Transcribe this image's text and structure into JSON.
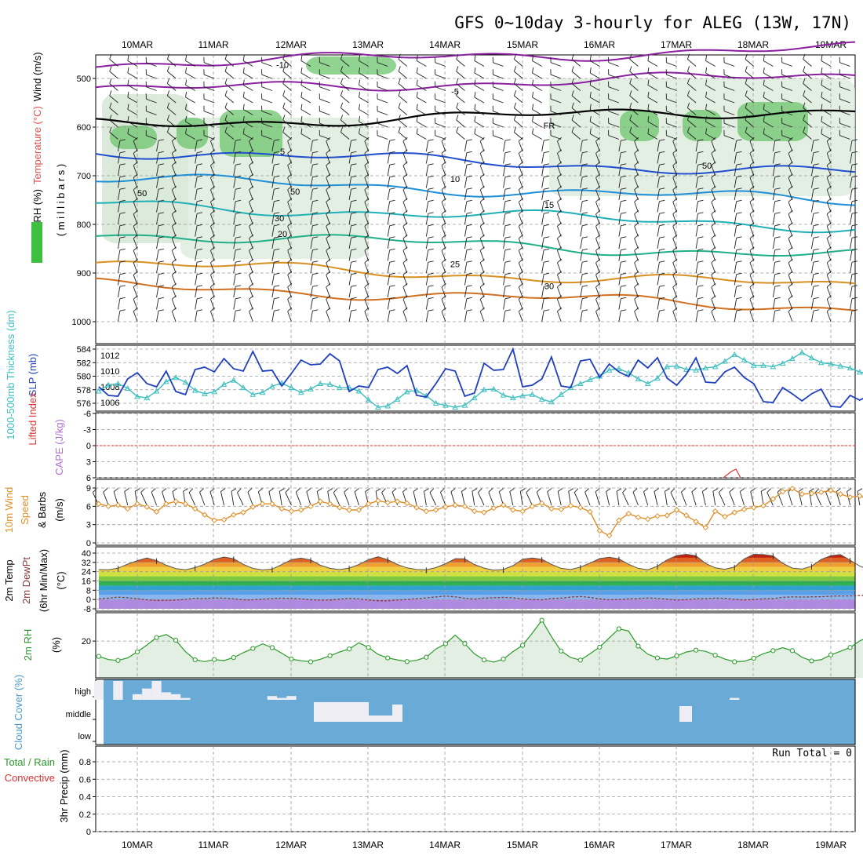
{
  "title": "GFS 0~10day 3-hourly for ALEG (13W, 17N)",
  "dates": [
    "10MAR",
    "11MAR",
    "12MAR",
    "13MAR",
    "14MAR",
    "15MAR",
    "16MAR",
    "17MAR",
    "18MAR",
    "19MAR"
  ],
  "colors": {
    "slp": "#1f3fbf",
    "thickness": "#3fbfbf",
    "wind": "#e0902a",
    "rh": "#2a9a2a",
    "cloud": "#6aaad6",
    "li": "#e03030",
    "cape": "#b070d0"
  },
  "chart_data": [
    {
      "type": "heatmap",
      "panel": "upper-air",
      "ylabel_parts": [
        "RH (%)",
        "Temperature (°C)",
        "Wind (m/s)"
      ],
      "ylabel2": "( m i l l i b a r s )",
      "y_ticks": [
        "500",
        "600",
        "700",
        "800",
        "900",
        "1000"
      ],
      "ylim": [
        450,
        1000
      ],
      "isotherms": [
        {
          "label": "-10",
          "pressure": 470,
          "color": "#8a1fa0"
        },
        {
          "label": "-5",
          "pressure": 525,
          "color": "#8a1fa0"
        },
        {
          "label": "FR",
          "pressure": 595,
          "color": "#000000"
        },
        {
          "label": "5",
          "pressure": 648,
          "color": "#1f4fd0"
        },
        {
          "label": "10",
          "pressure": 705,
          "color": "#1f8fd8"
        },
        {
          "label": "15",
          "pressure": 758,
          "color": "#1fb0b8"
        },
        {
          "label": "20",
          "pressure": 818,
          "color": "#1fb08a"
        },
        {
          "label": "25",
          "pressure": 880,
          "color": "#d89020"
        },
        {
          "label": "30",
          "pressure": 925,
          "color": "#d07020"
        }
      ],
      "rh_contour_labels": [
        "30",
        "50"
      ]
    },
    {
      "type": "line",
      "panel": "slp-thickness",
      "ylabel_left": "1000-500mb Thickness (dm)",
      "ylabel_right": "SLP (mb)",
      "left_ticks": [
        "584",
        "582",
        "580",
        "578",
        "576"
      ],
      "right_ticks": [
        "1012",
        "1010",
        "1008",
        "1006"
      ],
      "series": [
        {
          "name": "SLP (mb)",
          "values": [
            1008.0,
            1006.9,
            1006.8,
            1009.0,
            1009.8,
            1008.4,
            1008.0,
            1010.0,
            1007.4,
            1007.0,
            1010.2,
            1010.5,
            1009.9,
            1011.6,
            1010.3,
            1010.0,
            1012.5,
            1010.0,
            1010.1,
            1008.1,
            1009.7,
            1011.4,
            1010.8,
            1010.9,
            1012.2,
            1011.3,
            1007.4,
            1008.1,
            1007.9,
            1010.2,
            1010.5,
            1009.7,
            1010.7,
            1006.9,
            1006.7,
            1008.4,
            1010.3,
            1010.0,
            1006.8,
            1007.2,
            1011.0,
            1010.1,
            1010.2,
            1012.8,
            1008.0,
            1008.2,
            1009.0,
            1011.8,
            1008.1,
            1007.9,
            1011.3,
            1011.5,
            1009.2,
            1010.9,
            1009.9,
            1009.3,
            1011.4,
            1010.4,
            1011.7,
            1009.1,
            1008.2,
            1009.6,
            1011.7,
            1008.6,
            1008.5,
            1009.9,
            1010.5,
            1009.2,
            1008.4,
            1006.1,
            1006.0,
            1007.9,
            1007.1,
            1006.2,
            1007.1,
            1007.7,
            1005.5,
            1005.4,
            1006.9,
            1006.3,
            1006.9
          ]
        },
        {
          "name": "1000-500mb Thickness (dm)",
          "values": [
            577.8,
            578.7,
            578.9,
            578.2,
            577.0,
            576.8,
            577.8,
            579.2,
            579.8,
            579.1,
            577.9,
            577.4,
            577.7,
            578.8,
            579.4,
            578.3,
            577.3,
            577.6,
            578.5,
            579.0,
            578.3,
            577.6,
            578.1,
            578.9,
            578.8,
            578.3,
            578.3,
            577.8,
            576.5,
            575.4,
            575.6,
            576.6,
            577.7,
            577.9,
            577.1,
            576.0,
            575.7,
            575.4,
            575.7,
            576.8,
            578.0,
            578.1,
            577.2,
            576.8,
            577.1,
            577.3,
            576.6,
            576.2,
            577.3,
            578.3,
            578.9,
            579.5,
            580.0,
            580.9,
            581.1,
            580.5,
            579.6,
            578.9,
            579.7,
            581.4,
            581.5,
            581.0,
            580.9,
            581.2,
            581.4,
            582.2,
            583.2,
            582.4,
            581.6,
            581.6,
            581.4,
            581.9,
            582.6,
            583.5,
            582.7,
            582.0,
            581.8,
            581.5,
            581.2,
            580.6,
            580.4
          ]
        }
      ]
    },
    {
      "type": "line",
      "panel": "lifted-cape",
      "ylabel_left": "Lifted Index",
      "ylabel_right": "CAPE (J/kg)",
      "y_ticks": [
        "-6",
        "-3",
        "0",
        "3",
        "6"
      ]
    },
    {
      "type": "line",
      "panel": "wind10m",
      "ylabel": "10m Wind Speed & Barbs (m/s)",
      "ylabel_parts": [
        "10m Wind",
        "Speed",
        "& Barbs",
        "(m/s)"
      ],
      "y_ticks": [
        "9",
        "6",
        "3",
        "0"
      ],
      "ylim": [
        0,
        9
      ],
      "series": [
        {
          "name": "10m Wind Speed",
          "values": [
            6.4,
            6.0,
            6.2,
            5.6,
            6.4,
            5.9,
            5.1,
            6.4,
            6.8,
            6.4,
            5.6,
            4.6,
            3.7,
            3.8,
            4.6,
            5.0,
            5.9,
            6.4,
            6.4,
            5.6,
            5.2,
            5.4,
            6.0,
            6.8,
            6.4,
            5.8,
            5.4,
            5.4,
            6.4,
            6.9,
            6.6,
            6.8,
            6.5,
            5.8,
            5.2,
            5.4,
            5.9,
            6.2,
            6.0,
            5.2,
            5.0,
            5.7,
            6.2,
            5.4,
            5.2,
            6.0,
            6.5,
            5.6,
            5.5,
            6.1,
            5.8,
            5.1,
            2.0,
            1.2,
            3.7,
            4.8,
            4.2,
            3.9,
            4.4,
            4.5,
            5.4,
            4.5,
            3.5,
            2.5,
            5.2,
            4.3,
            5.0,
            5.5,
            5.8,
            6.1,
            7.2,
            8.4,
            8.9,
            8.0,
            8.1,
            8.3,
            8.6,
            8.0,
            7.5,
            7.7,
            7.1
          ]
        }
      ]
    },
    {
      "type": "area",
      "panel": "temp-dewpoint",
      "ylabel_parts": [
        "2m Temp",
        "2m DewPt",
        "(6hr Min/Max)",
        "(°C)"
      ],
      "y_ticks": [
        "40",
        "32",
        "24",
        "16",
        "8",
        "0",
        "-8"
      ],
      "ylim": [
        -8,
        40
      ],
      "series": [
        {
          "name": "2m Temp",
          "values": [
            25.8,
            25.6,
            27.0,
            30.5,
            33.5,
            35.9,
            33.5,
            29.6,
            26.7,
            25.7,
            27.5,
            30.5,
            34.6,
            36.6,
            35.2,
            30.3,
            26.8,
            25.5,
            26.2,
            30.1,
            34.4,
            35.7,
            34.1,
            29.5,
            26.9,
            25.8,
            27.1,
            30.1,
            34.3,
            36.8,
            34.4,
            30.2,
            27.3,
            25.9,
            25.6,
            27.5,
            30.9,
            35.2,
            35.1,
            30.2,
            27.1,
            25.3,
            25.9,
            29.2,
            34.8,
            35.8,
            34.7,
            30.3,
            26.9,
            25.9,
            27.9,
            31.5,
            35.3,
            36.5,
            35.0,
            30.4,
            26.9,
            25.7,
            28.7,
            34.2,
            37.9,
            39.0,
            37.7,
            31.1,
            27.3,
            26.1,
            28.0,
            35.0,
            39.0,
            38.7,
            37.6,
            31.3,
            27.1,
            26.2,
            28.7,
            34.5,
            37.8,
            38.7,
            33.9,
            28.9,
            25.3
          ]
        },
        {
          "name": "2m DewPt",
          "values": [
            0.5,
            1.2,
            2.0,
            1.5,
            0.6,
            -0.3,
            -0.8,
            -0.6,
            -0.5,
            0.1,
            1.1,
            0.8,
            1.3,
            1.2,
            0.6,
            -0.3,
            -0.3,
            0.3,
            0.8,
            1.2,
            0.9,
            0.6,
            -0.2,
            -0.5,
            -0.4,
            0.4,
            1.0,
            0.5,
            -0.4,
            -1.1,
            -1.1,
            -0.4,
            0.0,
            0.7,
            1.3,
            2.2,
            3.0,
            2.3,
            1.1,
            0.3,
            1.2,
            1.5,
            1.8,
            1.4,
            0.6,
            -0.1,
            -0.2,
            0.9,
            1.2,
            2.1,
            2.6,
            1.8,
            0.6,
            -0.2,
            0.0,
            0.5,
            0.8,
            1.4,
            1.0,
            0.3,
            -0.5,
            -0.1,
            0.6,
            0.8,
            1.2,
            1.0,
            0.2,
            -0.4,
            0.0,
            0.6,
            0.8,
            1.8,
            2.3,
            2.1,
            2.3,
            2.4,
            2.9,
            3.1,
            3.1,
            3.5,
            3.4
          ]
        }
      ]
    },
    {
      "type": "area",
      "panel": "rh2m",
      "ylabel": "2m RH",
      "yunit": "(%)",
      "y_ticks": [
        "20"
      ],
      "ylim": [
        0,
        35
      ],
      "series": [
        {
          "name": "2m RH",
          "values": [
            10.9,
            9.0,
            8.5,
            10.0,
            13.6,
            17.7,
            22.1,
            23.9,
            20.5,
            13.7,
            8.9,
            7.8,
            9.0,
            8.4,
            10.2,
            13.1,
            15.6,
            18.4,
            16.1,
            12.8,
            9.3,
            8.3,
            7.7,
            9.2,
            11.3,
            13.5,
            15.3,
            19.0,
            16.2,
            12.1,
            10.0,
            8.8,
            7.8,
            8.6,
            10.4,
            15.3,
            18.4,
            23.5,
            18.5,
            12.4,
            8.8,
            7.5,
            9.3,
            13.7,
            17.5,
            24.7,
            32.4,
            22.7,
            14.1,
            10.2,
            8.7,
            12.5,
            16.4,
            21.9,
            27.3,
            26.0,
            17.0,
            12.2,
            10.0,
            9.3,
            11.2,
            13.5,
            14.6,
            13.9,
            11.6,
            9.3,
            7.7,
            8.0,
            9.8,
            12.5,
            14.3,
            16.1,
            14.3,
            10.4,
            8.2,
            8.9,
            11.8,
            13.9,
            16.2,
            20.1,
            22.6
          ]
        }
      ]
    },
    {
      "type": "bar",
      "panel": "cloud-cover",
      "ylabel": "Cloud Cover (%)",
      "levels": [
        "high",
        "middle",
        "low"
      ],
      "series": [
        {
          "name": "high",
          "values": [
            100,
            0,
            100,
            0,
            30,
            60,
            100,
            40,
            30,
            10,
            0,
            0,
            0,
            0,
            0,
            0,
            0,
            0,
            20,
            10,
            20,
            0,
            0,
            0,
            0,
            0,
            0,
            0,
            0,
            0,
            0,
            0,
            0,
            0,
            0,
            0,
            0,
            0,
            0,
            0,
            0,
            0,
            0,
            0,
            0,
            0,
            0,
            0,
            0,
            0,
            0,
            0,
            0,
            0,
            0,
            0,
            0,
            0,
            0,
            0,
            0,
            0,
            0,
            0,
            0,
            0,
            10,
            0,
            0,
            0,
            0,
            0,
            0,
            0,
            0,
            0,
            0,
            0,
            0,
            0,
            0
          ]
        },
        {
          "name": "middle",
          "values": [
            0,
            0,
            0,
            0,
            0,
            0,
            0,
            0,
            0,
            0,
            0,
            0,
            0,
            0,
            0,
            0,
            0,
            0,
            0,
            0,
            0,
            0,
            0,
            0,
            0,
            0,
            0,
            0,
            0,
            0,
            0,
            0,
            0,
            0,
            0,
            0,
            0,
            0,
            0,
            0,
            0,
            0,
            0,
            0,
            0,
            0,
            0,
            0,
            0,
            0,
            0,
            0,
            0,
            0,
            0,
            0,
            0,
            0,
            0,
            0,
            0,
            0,
            0,
            0,
            0,
            0,
            0,
            0,
            0,
            0,
            0,
            0,
            0,
            0,
            0,
            0,
            0,
            0,
            0,
            0,
            0
          ]
        },
        {
          "name": "low",
          "values": [
            0,
            0,
            0,
            0,
            0,
            0,
            0,
            0,
            0,
            0,
            0,
            0,
            0,
            0,
            0,
            0,
            0,
            0,
            0,
            0,
            0,
            0,
            0,
            0,
            0,
            0,
            0,
            0,
            0,
            0,
            0,
            0,
            0,
            0,
            0,
            0,
            0,
            0,
            0,
            0,
            0,
            0,
            0,
            0,
            0,
            0,
            0,
            0,
            0,
            0,
            0,
            0,
            0,
            0,
            0,
            0,
            0,
            0,
            0,
            0,
            0,
            0,
            0,
            0,
            0,
            0,
            0,
            0,
            0,
            0,
            0,
            0,
            0,
            0,
            0,
            0,
            0,
            0,
            0,
            0,
            0
          ]
        }
      ]
    },
    {
      "type": "bar",
      "panel": "precip",
      "ylabel_left": "Total / Rain",
      "ylabel_left2": "Convective",
      "ylabel": "3hr Precip (mm)",
      "y_ticks": [
        "0.8",
        "0.6",
        "0.4",
        "0.2",
        "0"
      ],
      "ylim": [
        0,
        0.9
      ],
      "annotation": "Run Total = 0",
      "values": [
        0,
        0,
        0,
        0,
        0,
        0,
        0,
        0,
        0,
        0
      ]
    }
  ]
}
